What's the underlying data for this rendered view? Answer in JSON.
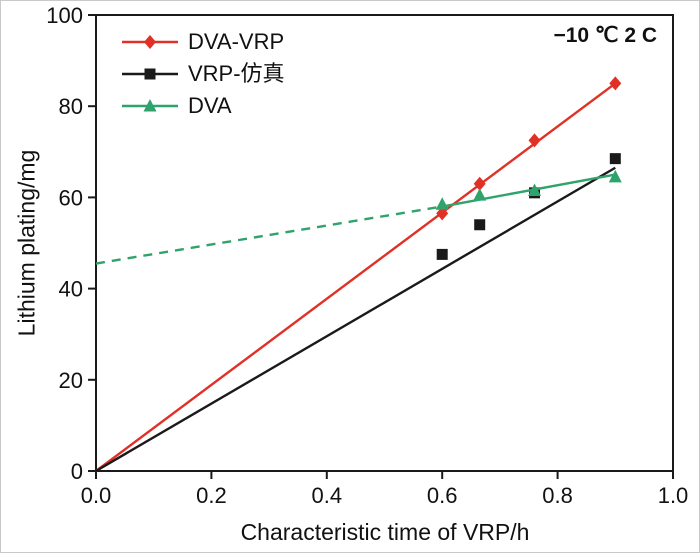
{
  "chart_data": {
    "type": "line",
    "title": "",
    "xlabel": "Characteristic time of VRP/h",
    "ylabel": "Lithium plating/mg",
    "annotation": "−10 ℃ 2 C",
    "xlim": [
      0.0,
      1.0
    ],
    "ylim": [
      0,
      100
    ],
    "xticks": [
      "0.0",
      "0.2",
      "0.4",
      "0.6",
      "0.8",
      "1.0"
    ],
    "yticks": [
      "0",
      "20",
      "40",
      "60",
      "80",
      "100"
    ],
    "grid": false,
    "legend_position": "top-left",
    "series": [
      {
        "name": "DVA-VRP",
        "color": "#e03127",
        "marker": "diamond",
        "line_style": "solid",
        "line": [
          [
            0.0,
            0.0
          ],
          [
            0.9,
            85.0
          ]
        ],
        "points": [
          [
            0.6,
            56.5
          ],
          [
            0.665,
            63.0
          ],
          [
            0.76,
            72.5
          ],
          [
            0.9,
            85.0
          ]
        ]
      },
      {
        "name": "VRP-仿真",
        "color": "#1a1a1a",
        "marker": "square",
        "line_style": "solid",
        "line": [
          [
            0.0,
            0.0
          ],
          [
            0.9,
            66.5
          ]
        ],
        "points": [
          [
            0.6,
            47.5
          ],
          [
            0.665,
            54.0
          ],
          [
            0.76,
            61.0
          ],
          [
            0.9,
            68.5
          ]
        ]
      },
      {
        "name": "DVA",
        "color": "#2fa36b",
        "marker": "triangle",
        "line_style": "dashed-then-solid",
        "dashed_line": [
          [
            0.0,
            45.5
          ],
          [
            0.6,
            58.0
          ]
        ],
        "line": [
          [
            0.6,
            58.0
          ],
          [
            0.9,
            65.0
          ]
        ],
        "points": [
          [
            0.6,
            58.5
          ],
          [
            0.665,
            60.5
          ],
          [
            0.76,
            61.5
          ],
          [
            0.9,
            64.5
          ]
        ]
      }
    ]
  }
}
